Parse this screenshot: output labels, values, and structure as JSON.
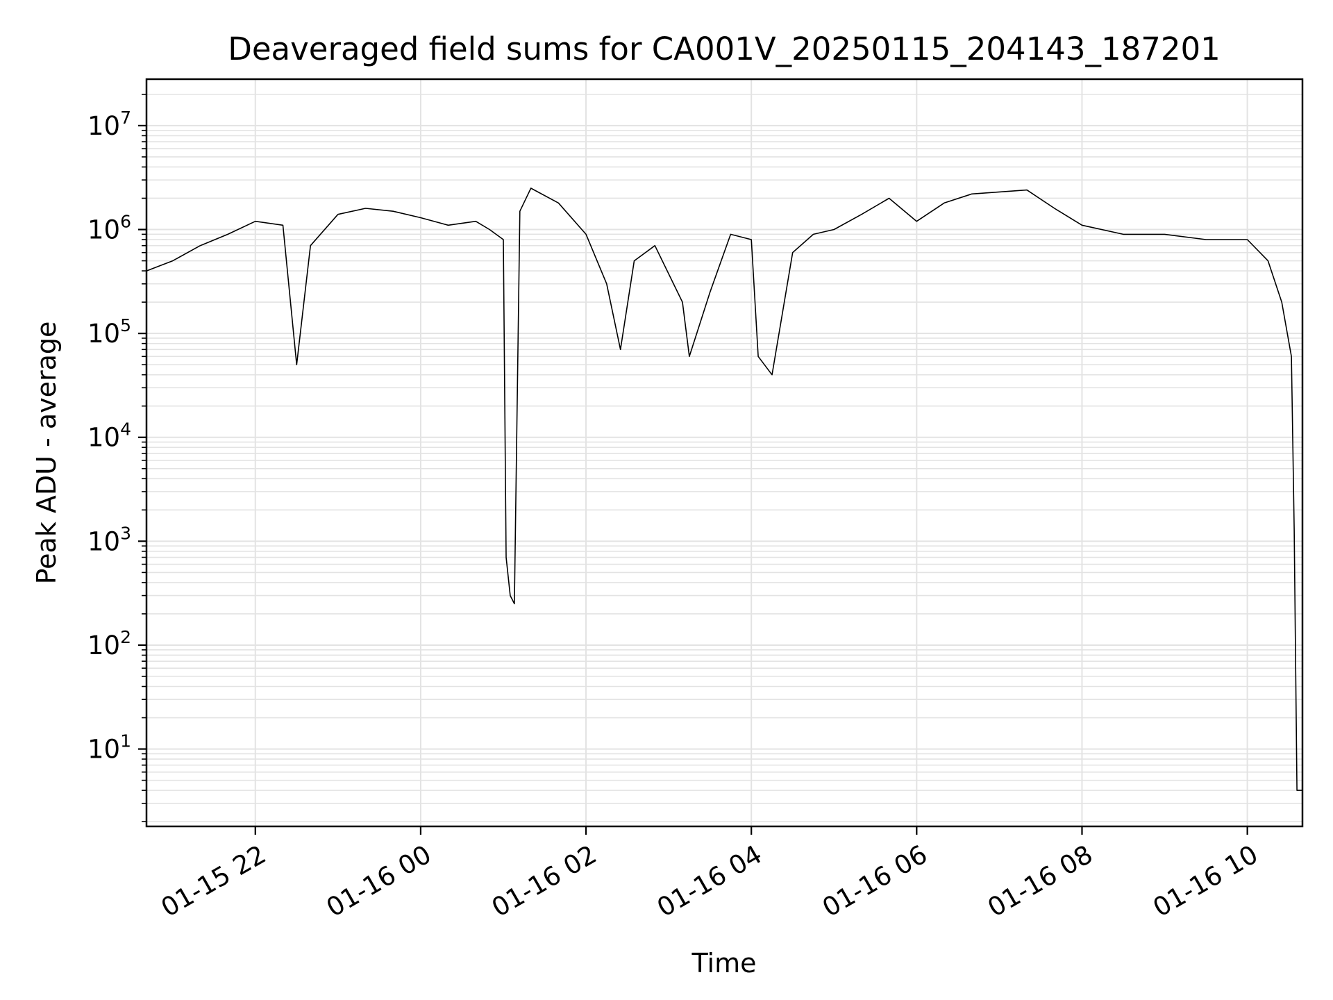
{
  "chart_data": {
    "type": "line",
    "title": "Deaveraged field sums for CA001V_20250115_204143_187201",
    "xlabel": "Time",
    "ylabel": "Peak ADU - average",
    "yscale": "log",
    "ylim": [
      1.8,
      28000000
    ],
    "xlim": [
      "2025-01-15 20:41",
      "2025-01-16 10:40"
    ],
    "grid": true,
    "legend": "none",
    "line_color": "#000000",
    "x_ticks": [
      {
        "t": "2025-01-15 22:00",
        "label": "01-15 22"
      },
      {
        "t": "2025-01-16 00:00",
        "label": "01-16 00"
      },
      {
        "t": "2025-01-16 02:00",
        "label": "01-16 02"
      },
      {
        "t": "2025-01-16 04:00",
        "label": "01-16 04"
      },
      {
        "t": "2025-01-16 06:00",
        "label": "01-16 06"
      },
      {
        "t": "2025-01-16 08:00",
        "label": "01-16 08"
      },
      {
        "t": "2025-01-16 10:00",
        "label": "01-16 10"
      }
    ],
    "y_ticks": [
      {
        "value": 10,
        "base": "10",
        "exp": "1"
      },
      {
        "value": 100,
        "base": "10",
        "exp": "2"
      },
      {
        "value": 1000,
        "base": "10",
        "exp": "3"
      },
      {
        "value": 10000,
        "base": "10",
        "exp": "4"
      },
      {
        "value": 100000,
        "base": "10",
        "exp": "5"
      },
      {
        "value": 1000000,
        "base": "10",
        "exp": "6"
      },
      {
        "value": 10000000,
        "base": "10",
        "exp": "7"
      }
    ],
    "series": [
      {
        "x": [
          "2025-01-15 20:41",
          "2025-01-15 21:00",
          "2025-01-15 21:20",
          "2025-01-15 21:40",
          "2025-01-15 22:00",
          "2025-01-15 22:20",
          "2025-01-15 22:30",
          "2025-01-15 22:40",
          "2025-01-15 23:00",
          "2025-01-15 23:20",
          "2025-01-15 23:40",
          "2025-01-16 00:00",
          "2025-01-16 00:20",
          "2025-01-16 00:40",
          "2025-01-16 00:50",
          "2025-01-16 01:00",
          "2025-01-16 01:02",
          "2025-01-16 01:05",
          "2025-01-16 01:08",
          "2025-01-16 01:12",
          "2025-01-16 01:20",
          "2025-01-16 01:40",
          "2025-01-16 02:00",
          "2025-01-16 02:15",
          "2025-01-16 02:25",
          "2025-01-16 02:35",
          "2025-01-16 02:50",
          "2025-01-16 03:10",
          "2025-01-16 03:15",
          "2025-01-16 03:30",
          "2025-01-16 03:45",
          "2025-01-16 04:00",
          "2025-01-16 04:05",
          "2025-01-16 04:15",
          "2025-01-16 04:30",
          "2025-01-16 04:45",
          "2025-01-16 05:00",
          "2025-01-16 05:20",
          "2025-01-16 05:40",
          "2025-01-16 06:00",
          "2025-01-16 06:20",
          "2025-01-16 06:40",
          "2025-01-16 07:00",
          "2025-01-16 07:20",
          "2025-01-16 07:40",
          "2025-01-16 08:00",
          "2025-01-16 08:30",
          "2025-01-16 09:00",
          "2025-01-16 09:30",
          "2025-01-16 10:00",
          "2025-01-16 10:15",
          "2025-01-16 10:25",
          "2025-01-16 10:32",
          "2025-01-16 10:34",
          "2025-01-16 10:36",
          "2025-01-16 10:40"
        ],
        "y": [
          400000,
          500000,
          700000,
          900000,
          1200000,
          1100000,
          50000,
          700000,
          1400000,
          1600000,
          1500000,
          1300000,
          1100000,
          1200000,
          1000000,
          800000,
          700,
          300,
          250,
          1500000,
          2500000,
          1800000,
          900000,
          300000,
          70000,
          500000,
          700000,
          200000,
          60000,
          250000,
          900000,
          800000,
          60000,
          40000,
          600000,
          900000,
          1000000,
          1400000,
          2000000,
          1200000,
          1800000,
          2200000,
          2300000,
          2400000,
          1600000,
          1100000,
          900000,
          900000,
          800000,
          800000,
          500000,
          200000,
          60000,
          1300,
          4,
          4
        ]
      }
    ],
    "annotations": []
  }
}
